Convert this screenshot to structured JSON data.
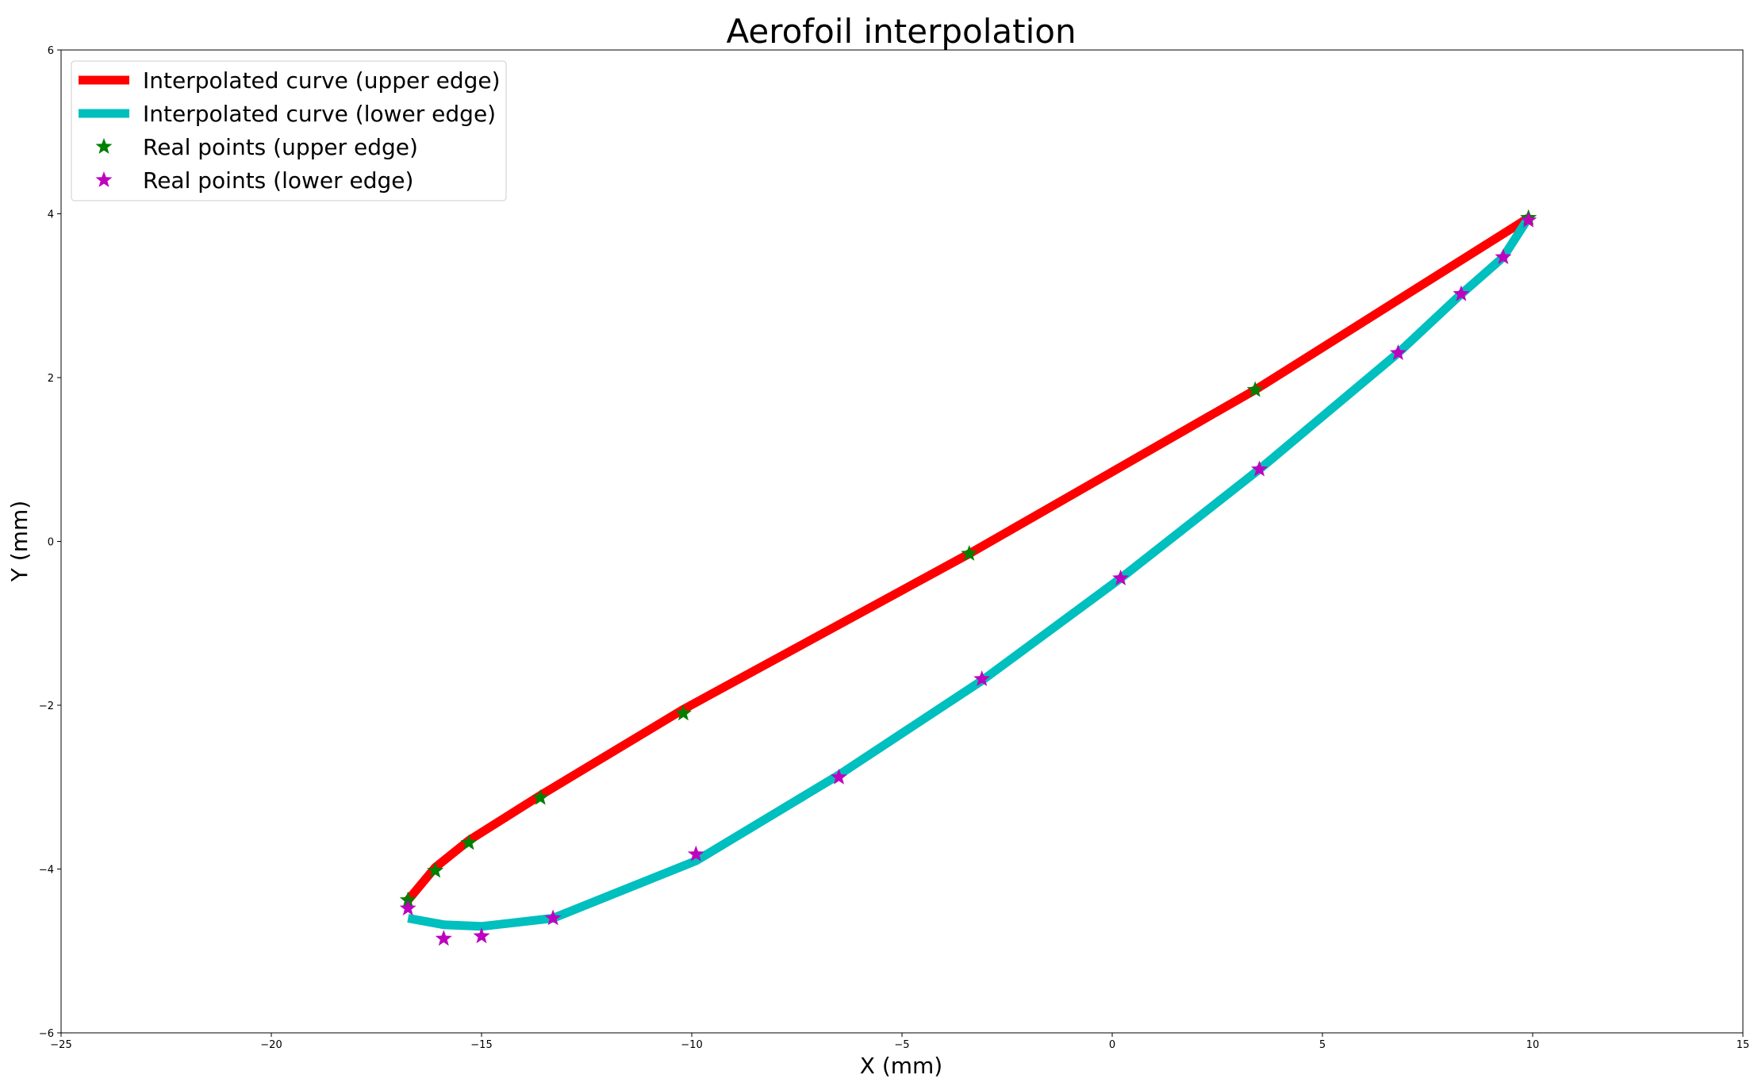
{
  "chart_data": {
    "type": "line",
    "title": "Aerofoil interpolation",
    "xlabel": "X (mm)",
    "ylabel": "Y (mm)",
    "xlim": [
      -25,
      15
    ],
    "ylim": [
      -6,
      6
    ],
    "xticks": [
      -25,
      -20,
      -15,
      -10,
      -5,
      0,
      5,
      10,
      15
    ],
    "yticks": [
      -6,
      -4,
      -2,
      0,
      2,
      4,
      6
    ],
    "xtick_labels": [
      "−25",
      "−20",
      "−15",
      "−10",
      "−5",
      "0",
      "5",
      "10",
      "15"
    ],
    "ytick_labels": [
      "−6",
      "−4",
      "−2",
      "0",
      "2",
      "4",
      "6"
    ],
    "grid": false,
    "legend_position": "top-left",
    "series": [
      {
        "name": "Interpolated curve (upper edge)",
        "kind": "line",
        "color": "#ff0000",
        "x": [
          -16.75,
          -16.1,
          -15.3,
          -13.6,
          -10.2,
          -3.4,
          3.4,
          9.9
        ],
        "y": [
          -4.38,
          -3.98,
          -3.65,
          -3.1,
          -2.05,
          -0.15,
          1.85,
          3.95
        ]
      },
      {
        "name": "Interpolated curve (lower edge)",
        "kind": "line",
        "color": "#00bfbf",
        "x": [
          -16.75,
          -15.9,
          -15.0,
          -13.3,
          -9.9,
          -6.5,
          -3.1,
          0.2,
          3.5,
          6.8,
          8.3,
          9.3,
          9.9
        ],
        "y": [
          -4.6,
          -4.68,
          -4.7,
          -4.6,
          -3.9,
          -2.85,
          -1.7,
          -0.45,
          0.88,
          2.3,
          3.02,
          3.47,
          3.95
        ]
      },
      {
        "name": "Real points (upper edge)",
        "kind": "scatter",
        "color": "#008000",
        "x": [
          -16.75,
          -16.1,
          -15.3,
          -13.6,
          -10.2,
          -3.4,
          3.4,
          9.9
        ],
        "y": [
          -4.38,
          -4.02,
          -3.68,
          -3.13,
          -2.1,
          -0.15,
          1.85,
          3.95
        ]
      },
      {
        "name": "Real points (lower edge)",
        "kind": "scatter",
        "color": "#bf00bf",
        "x": [
          -16.75,
          -15.9,
          -15.0,
          -13.3,
          -9.9,
          -6.5,
          -3.1,
          0.2,
          3.5,
          6.8,
          8.3,
          9.3,
          9.9
        ],
        "y": [
          -4.48,
          -4.85,
          -4.82,
          -4.6,
          -3.82,
          -2.88,
          -1.68,
          -0.45,
          0.88,
          2.3,
          3.02,
          3.47,
          3.92
        ]
      }
    ]
  }
}
